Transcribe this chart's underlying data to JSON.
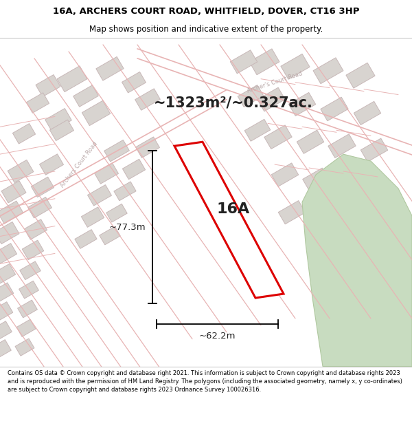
{
  "title_line1": "16A, ARCHERS COURT ROAD, WHITFIELD, DOVER, CT16 3HP",
  "title_line2": "Map shows position and indicative extent of the property.",
  "area_text": "~1323m²/~0.327ac.",
  "label_16a": "16A",
  "dim_width": "~62.2m",
  "dim_height": "~77.3m",
  "footer_text": "Contains OS data © Crown copyright and database right 2021. This information is subject to Crown copyright and database rights 2023 and is reproduced with the permission of HM Land Registry. The polygons (including the associated geometry, namely x, y co-ordinates) are subject to Crown copyright and database rights 2023 Ordnance Survey 100026316.",
  "map_bg": "#f7f3f0",
  "road_color": "#e8b4b4",
  "building_fill": "#d8d4d0",
  "building_edge": "#c8b8b8",
  "property_color": "#dd0000",
  "green_color": "#c8dcc0",
  "green_edge": "#b0c8a0",
  "title_bg": "#ffffff",
  "footer_bg": "#ffffff",
  "text_dark": "#222222",
  "road_label_color": "#bbaaaa"
}
